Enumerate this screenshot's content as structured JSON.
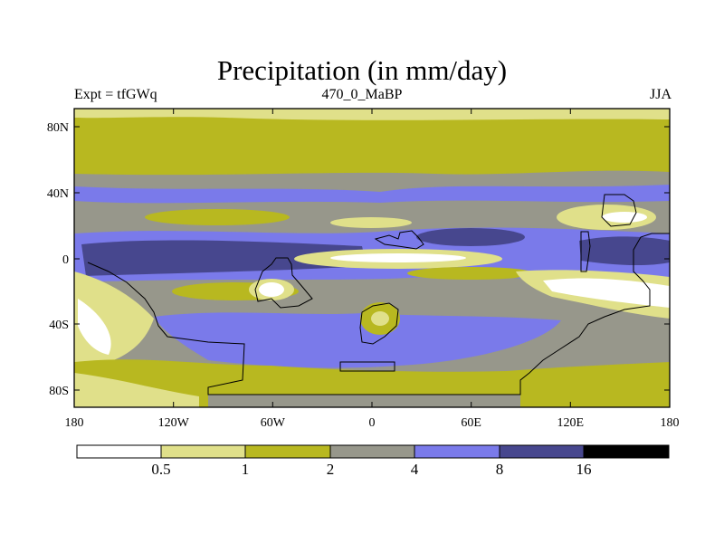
{
  "title": "Precipitation (in mm/day)",
  "left_string": "Expt = tfGWq",
  "center_string": "470_0_MaBP",
  "right_string": "JJA",
  "lat_ticks": [
    "80N",
    "40N",
    "0",
    "40S",
    "80S"
  ],
  "lon_ticks": [
    "180",
    "120W",
    "60W",
    "0",
    "60E",
    "120E",
    "180"
  ],
  "colorbar": {
    "labels": [
      "0.5",
      "1",
      "2",
      "4",
      "8",
      "16"
    ],
    "colors": [
      "#ffffff",
      "#e0e08a",
      "#b8b820",
      "#97978b",
      "#7a7aea",
      "#47478e",
      "#000000"
    ]
  },
  "chart_data": {
    "type": "heatmap",
    "title": "Precipitation (in mm/day)",
    "variable": "Precipitation",
    "units": "mm/day",
    "experiment": "tfGWq",
    "period": "470_0_MaBP",
    "season": "JJA",
    "levels": [
      0.5,
      1,
      2,
      4,
      8,
      16
    ],
    "xrange": [
      -180,
      180
    ],
    "yrange": [
      -90,
      90
    ]
  }
}
